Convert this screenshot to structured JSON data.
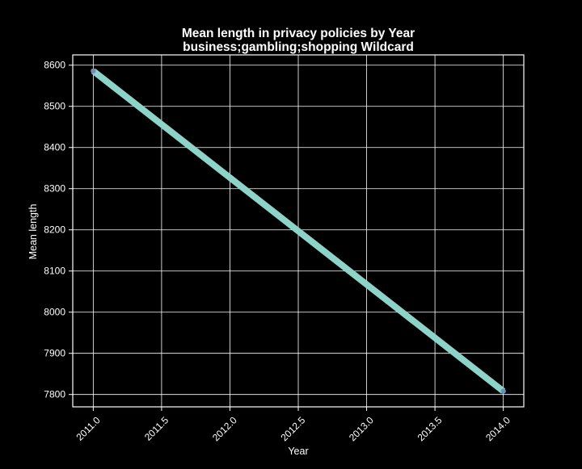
{
  "chart_data": {
    "type": "line",
    "title": "Mean length in privacy policies by Year",
    "subtitle": "business;gambling;shopping Wildcard",
    "xlabel": "Year",
    "ylabel": "Mean length",
    "x": [
      2011.0,
      2014.0
    ],
    "series": [
      {
        "values": [
          8586,
          7808
        ]
      }
    ],
    "xlim": [
      2010.85,
      2014.15
    ],
    "ylim": [
      7770,
      8625
    ],
    "xticks": [
      "2011.0",
      "2011.5",
      "2012.0",
      "2012.5",
      "2013.0",
      "2013.5",
      "2014.0"
    ],
    "yticks": [
      "7800",
      "7900",
      "8000",
      "8100",
      "8200",
      "8300",
      "8400",
      "8500",
      "8600"
    ],
    "grid": true,
    "legend": "none",
    "colors": {
      "background": "#000000",
      "line": "#8dd3c7",
      "marker": "#6e8fb8",
      "grid": "#ffffff",
      "text": "#ffffff"
    }
  }
}
